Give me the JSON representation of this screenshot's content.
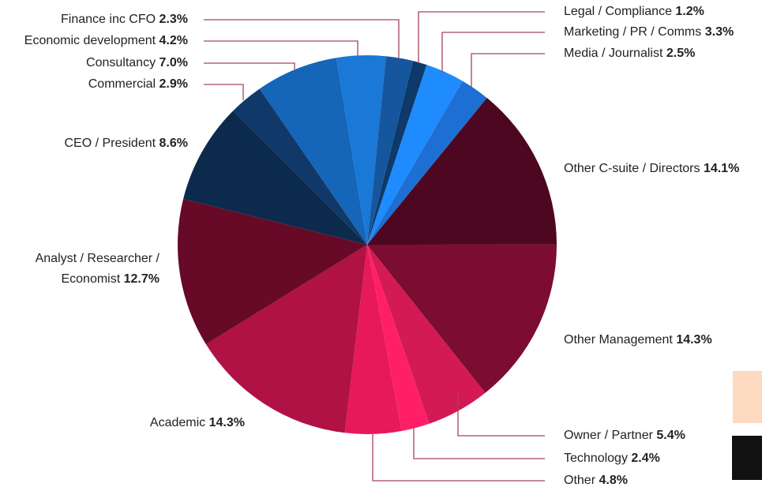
{
  "chart_data": {
    "type": "pie",
    "categories": [
      "Legal / Compliance",
      "Marketing / PR / Comms",
      "Media / Journalist",
      "Other C-suite / Directors",
      "Other Management",
      "Owner / Partner",
      "Technology",
      "Other",
      "Academic",
      "Analyst / Researcher / Economist",
      "CEO / President",
      "Commercial",
      "Consultancy",
      "Economic development",
      "Finance inc CFO"
    ],
    "values": [
      1.2,
      3.3,
      2.5,
      14.1,
      14.3,
      5.4,
      2.4,
      4.8,
      14.3,
      12.7,
      8.6,
      2.9,
      7.0,
      4.2,
      2.3
    ],
    "value_labels": [
      "1.2%",
      "3.3%",
      "2.5%",
      "14.1%",
      "14.3%",
      "5.4%",
      "2.4%",
      "4.8%",
      "14.3%",
      "12.7%",
      "8.6%",
      "2.9%",
      "7.0%",
      "4.2%",
      "2.3%"
    ],
    "colors": [
      "#0d3a6b",
      "#1e8bff",
      "#1d6fd4",
      "#4e0720",
      "#7d0c32",
      "#d31a55",
      "#ff1f68",
      "#e8195a",
      "#b01245",
      "#660a28",
      "#0c2a4c",
      "#10396a",
      "#1565b8",
      "#1a78d6",
      "#15569e"
    ]
  }
}
